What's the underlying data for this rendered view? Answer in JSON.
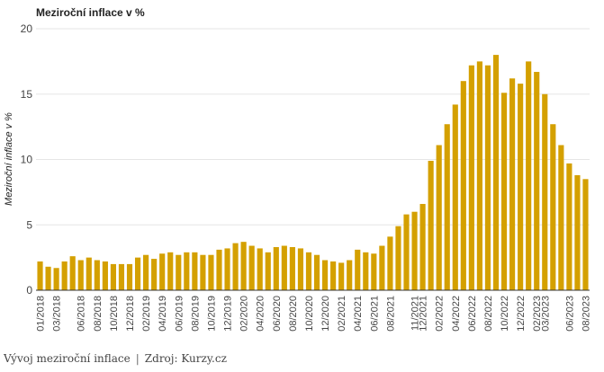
{
  "chart_data": {
    "type": "bar",
    "title": "Meziroční inflace v %",
    "xlabel": "",
    "ylabel": "Meziroční inflace v %",
    "ylim": [
      0,
      20
    ],
    "yticks": [
      0,
      5,
      10,
      15,
      20
    ],
    "grid": true,
    "legend": "none",
    "bar_color": "#d4a000",
    "categories": [
      "01/2018",
      "02/2018",
      "03/2018",
      "04/2018",
      "05/2018",
      "06/2018",
      "07/2018",
      "08/2018",
      "09/2018",
      "10/2018",
      "11/2018",
      "12/2018",
      "01/2019",
      "02/2019",
      "03/2019",
      "04/2019",
      "05/2019",
      "06/2019",
      "07/2019",
      "08/2019",
      "09/2019",
      "10/2019",
      "11/2019",
      "12/2019",
      "01/2020",
      "02/2020",
      "03/2020",
      "04/2020",
      "05/2020",
      "06/2020",
      "07/2020",
      "08/2020",
      "09/2020",
      "10/2020",
      "11/2020",
      "12/2020",
      "01/2021",
      "02/2021",
      "03/2021",
      "04/2021",
      "05/2021",
      "06/2021",
      "07/2021",
      "08/2021",
      "09/2021",
      "10/2021",
      "11/2021",
      "12/2021",
      "01/2022",
      "02/2022",
      "03/2022",
      "04/2022",
      "05/2022",
      "06/2022",
      "07/2022",
      "08/2022",
      "09/2022",
      "10/2022",
      "11/2022",
      "12/2022",
      "01/2023",
      "02/2023",
      "03/2023",
      "04/2023",
      "05/2023",
      "06/2023",
      "07/2023",
      "08/2023"
    ],
    "xtick_labels": [
      "01/2018",
      "03/2018",
      "06/2018",
      "08/2018",
      "10/2018",
      "12/2018",
      "02/2019",
      "04/2019",
      "06/2019",
      "08/2019",
      "10/2019",
      "12/2019",
      "02/2020",
      "04/2020",
      "06/2020",
      "08/2020",
      "10/2020",
      "12/2020",
      "02/2021",
      "04/2021",
      "06/2021",
      "08/2021",
      "11/2021",
      "12/2021",
      "02/2022",
      "04/2022",
      "06/2022",
      "08/2022",
      "10/2022",
      "12/2022",
      "02/2023",
      "03/2023",
      "06/2023",
      "08/2023"
    ],
    "values": [
      2.2,
      1.8,
      1.7,
      2.2,
      2.6,
      2.3,
      2.5,
      2.3,
      2.2,
      2.0,
      2.0,
      2.0,
      2.5,
      2.7,
      2.4,
      2.8,
      2.9,
      2.7,
      2.9,
      2.9,
      2.7,
      2.7,
      3.1,
      3.2,
      3.6,
      3.7,
      3.4,
      3.2,
      2.9,
      3.3,
      3.4,
      3.3,
      3.2,
      2.9,
      2.7,
      2.3,
      2.2,
      2.1,
      2.3,
      3.1,
      2.9,
      2.8,
      3.4,
      4.1,
      4.9,
      5.8,
      6.0,
      6.6,
      9.9,
      11.1,
      12.7,
      14.2,
      16.0,
      17.2,
      17.5,
      17.2,
      18.0,
      15.1,
      16.2,
      15.8,
      17.5,
      16.7,
      15.0,
      12.7,
      11.1,
      9.7,
      8.8,
      8.5
    ]
  },
  "caption": {
    "text": "Vývoj meziroční inflace",
    "separator": "|",
    "source": "Zdroj: Kurzy.cz"
  }
}
